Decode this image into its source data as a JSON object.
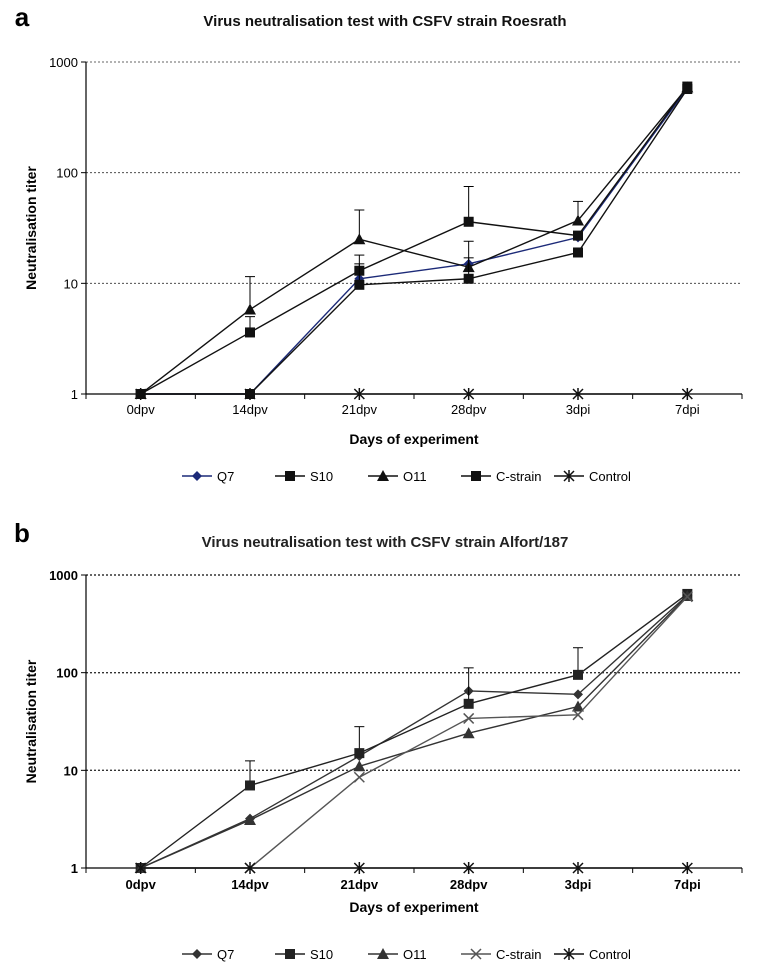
{
  "chart_data": [
    {
      "panel_label": "a",
      "type": "line",
      "title": "Virus neutralisation test with CSFV strain Roesrath",
      "xlabel": "Days of experiment",
      "ylabel": "Neutralisation titer",
      "yscale": "log",
      "ylim": [
        1,
        1000
      ],
      "yticks": [
        "1",
        "10",
        "100",
        "1000"
      ],
      "grid": "horizontal dotted",
      "legend": "bottom",
      "categories": [
        "0dpv",
        "14dpv",
        "21dpv",
        "28dpv",
        "3dpi",
        "7dpi"
      ],
      "series": [
        {
          "name": "Q7",
          "marker": "diamond",
          "color": "#1c2a78",
          "values": [
            1,
            1,
            11,
            15,
            26,
            580
          ],
          "error_up": [
            null,
            null,
            null,
            null,
            null,
            null
          ]
        },
        {
          "name": "S10",
          "marker": "square",
          "color": "#111111",
          "values": [
            1,
            3.6,
            13,
            36,
            27,
            600
          ],
          "error_up": [
            null,
            5.0,
            18,
            75,
            null,
            null
          ]
        },
        {
          "name": "O11",
          "marker": "triangle",
          "color": "#111111",
          "values": [
            1,
            5.8,
            25,
            14,
            37,
            590
          ],
          "error_up": [
            null,
            11.5,
            46,
            24,
            55,
            null
          ]
        },
        {
          "name": "C-strain",
          "marker": "square",
          "color": "#111111",
          "values": [
            1,
            1,
            9.7,
            11,
            19,
            570
          ],
          "error_up": [
            null,
            null,
            15,
            17,
            null,
            null
          ]
        },
        {
          "name": "Control",
          "marker": "star",
          "color": "#111111",
          "values": [
            1,
            1,
            1,
            1,
            1,
            1
          ],
          "error_up": [
            null,
            null,
            null,
            null,
            null,
            null
          ]
        }
      ]
    },
    {
      "panel_label": "b",
      "type": "line",
      "title": "Virus neutralisation test with CSFV strain Alfort/187",
      "xlabel": "Days of experiment",
      "ylabel": "Neutralisation titer",
      "yscale": "log",
      "ylim": [
        1,
        1000
      ],
      "yticks": [
        "1",
        "10",
        "100",
        "1000"
      ],
      "grid": "horizontal dotted",
      "legend": "bottom",
      "categories": [
        "0dpv",
        "14dpv",
        "21dpv",
        "28dpv",
        "3dpi",
        "7dpi"
      ],
      "series": [
        {
          "name": "Q7",
          "marker": "diamond",
          "color": "#333333",
          "values": [
            1,
            3.2,
            14,
            65,
            60,
            620
          ],
          "error_up": [
            null,
            null,
            null,
            null,
            null,
            null
          ]
        },
        {
          "name": "S10",
          "marker": "square",
          "color": "#222222",
          "values": [
            1,
            7.0,
            15,
            48,
            95,
            640
          ],
          "error_up": [
            null,
            12.5,
            28,
            112,
            180,
            null
          ]
        },
        {
          "name": "O11",
          "marker": "triangle",
          "color": "#333333",
          "values": [
            1,
            3.1,
            11,
            24,
            45,
            610
          ],
          "error_up": [
            null,
            null,
            null,
            null,
            null,
            null
          ]
        },
        {
          "name": "C-strain",
          "marker": "x",
          "color": "#555555",
          "values": [
            1,
            1,
            8.5,
            34,
            37,
            600
          ],
          "error_up": [
            null,
            null,
            null,
            null,
            null,
            null
          ]
        },
        {
          "name": "Control",
          "marker": "star",
          "color": "#111111",
          "values": [
            1,
            1,
            1,
            1,
            1,
            1
          ],
          "error_up": [
            null,
            null,
            null,
            null,
            null,
            null
          ]
        }
      ]
    }
  ]
}
